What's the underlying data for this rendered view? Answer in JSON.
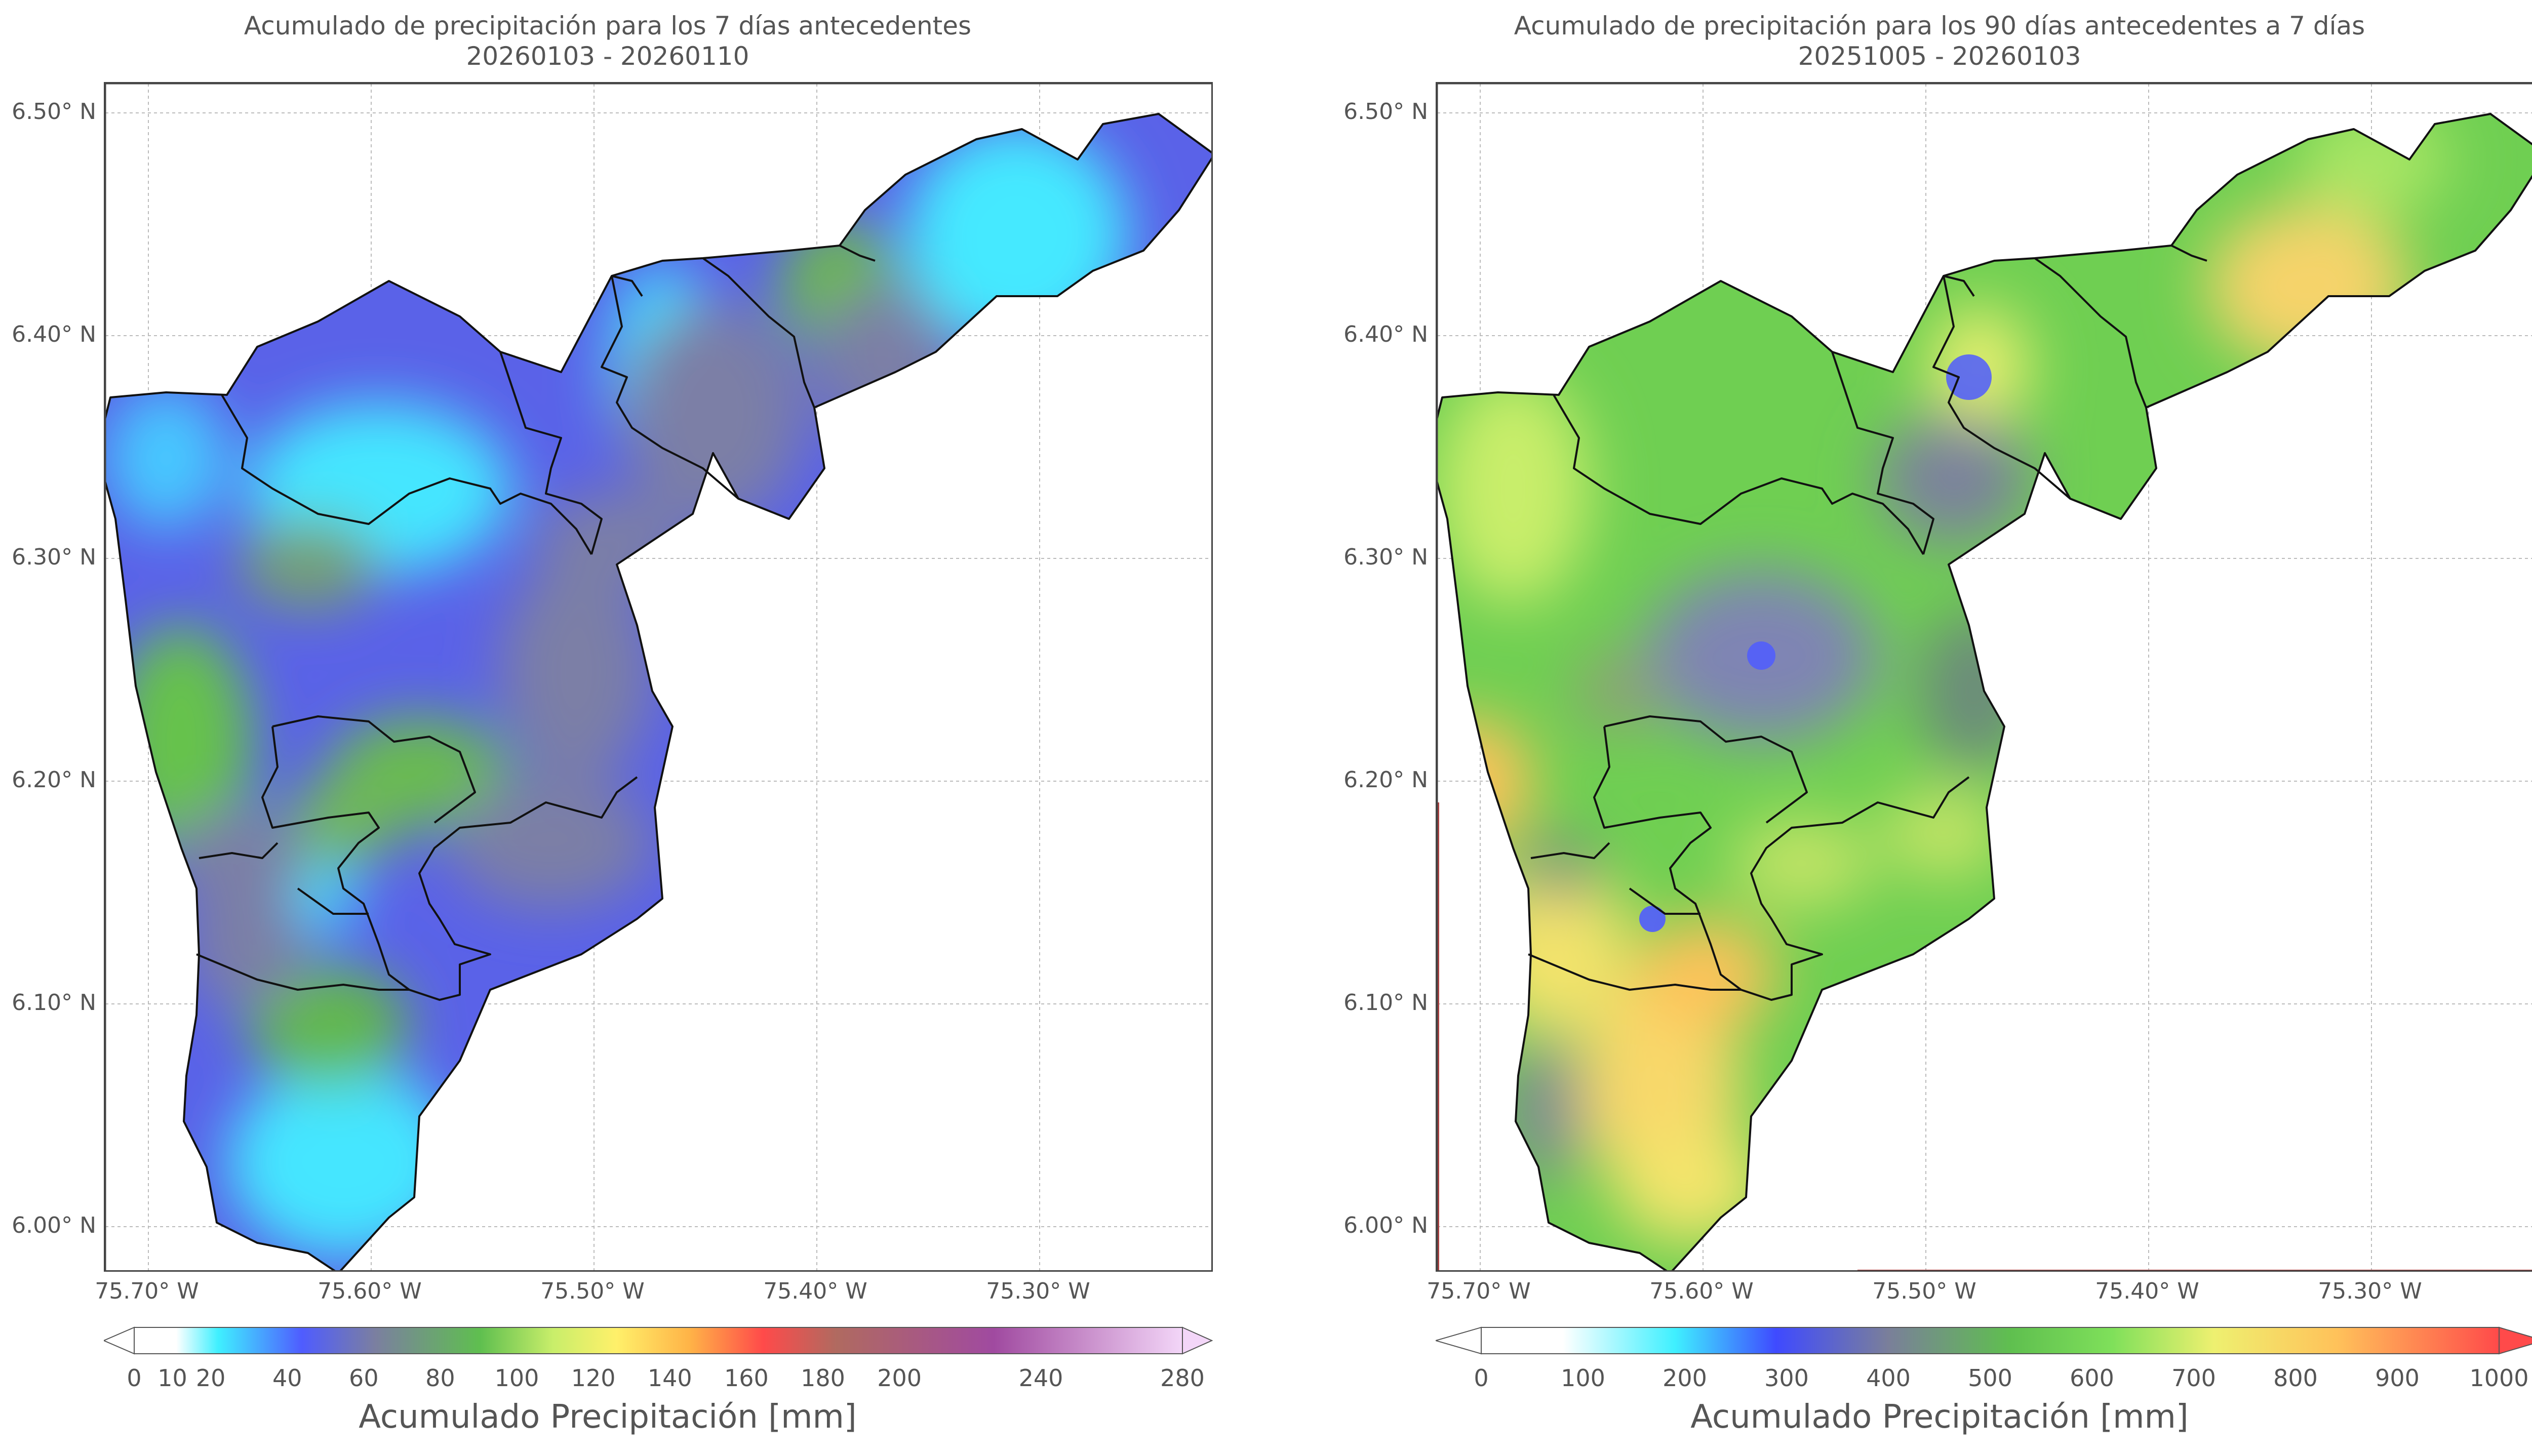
{
  "panels": [
    {
      "title_line1": "Acumulado de precipitación para los 7 días antecedentes",
      "title_line2": "20260103 - 20260110",
      "y_labels": [
        "6.50° N",
        "6.40° N",
        "6.30° N",
        "6.20° N",
        "6.10° N",
        "6.00° N"
      ],
      "x_labels": [
        "75.70° W",
        "75.60° W",
        "75.50° W",
        "75.40° W",
        "75.30° W"
      ],
      "colorbar_ticks": [
        "0",
        "10",
        "20",
        "40",
        "60",
        "80",
        "100",
        "120",
        "140",
        "160",
        "180",
        "200",
        "240",
        "280"
      ],
      "colorbar_tick_values": [
        0,
        10,
        20,
        40,
        60,
        80,
        100,
        120,
        140,
        160,
        180,
        200,
        240,
        280
      ],
      "colorbar_range": [
        0,
        280
      ],
      "colorbar_label": "Acumulado Precipitación [mm]",
      "colorbar_colors": [
        "#ffffff",
        "#3ff0ff",
        "#4f5cff",
        "#7b7fa0",
        "#5fbf4f",
        "#c9ee6a",
        "#fff06a",
        "#ffb347",
        "#ff4a4a",
        "#b06a60",
        "#a04aa0",
        "#f3d6f8"
      ],
      "dominant_color": "#5a62e8"
    },
    {
      "title_line1": "Acumulado de precipitación para los 90 días antecedentes a 7 días",
      "title_line2": "20251005 - 20260103",
      "y_labels": [
        "6.50° N",
        "6.40° N",
        "6.30° N",
        "6.20° N",
        "6.10° N",
        "6.00° N"
      ],
      "x_labels": [
        "75.70° W",
        "75.60° W",
        "75.50° W",
        "75.40° W",
        "75.30° W"
      ],
      "colorbar_ticks": [
        "0",
        "100",
        "200",
        "300",
        "400",
        "500",
        "600",
        "700",
        "800",
        "900",
        "1000"
      ],
      "colorbar_tick_values": [
        0,
        100,
        200,
        300,
        400,
        500,
        600,
        700,
        800,
        900,
        1000
      ],
      "colorbar_range": [
        0,
        1000
      ],
      "colorbar_label": "Acumulado Precipitación [mm]",
      "colorbar_colors": [
        "#ffffff",
        "#3ff0ff",
        "#3f4aff",
        "#7a7f9a",
        "#5fbf4f",
        "#7fe05a",
        "#eef070",
        "#ffc25a",
        "#ff4a4a"
      ],
      "dominant_color": "#6fcf52"
    }
  ]
}
